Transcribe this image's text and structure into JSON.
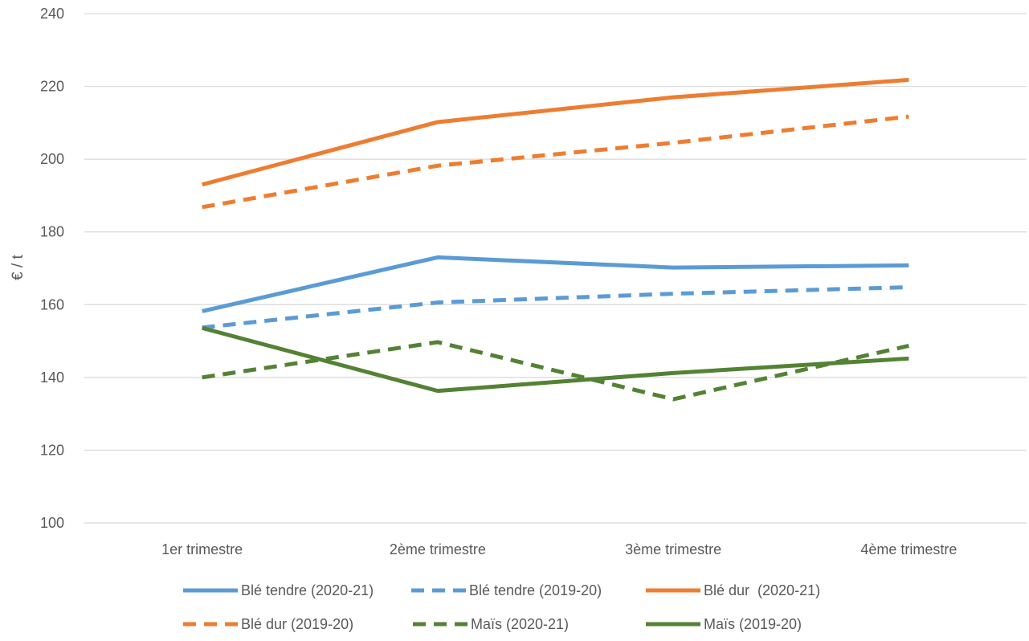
{
  "chart_data": {
    "type": "line",
    "title": "",
    "xlabel": "",
    "ylabel": "€ / t",
    "ylim": [
      100,
      240
    ],
    "yticks": [
      100,
      120,
      140,
      160,
      180,
      200,
      220,
      240
    ],
    "grid": true,
    "legend_position": "bottom",
    "categories": [
      "1er trimestre",
      "2ème trimestre",
      "3ème trimestre",
      "4ème trimestre"
    ],
    "series": [
      {
        "name": "Blé tendre (2020-21)",
        "values": [
          158.2,
          173.0,
          170.2,
          170.8
        ],
        "color": "#5B9BD5",
        "dash": "solid"
      },
      {
        "name": "Blé tendre (2019-20)",
        "values": [
          153.7,
          160.6,
          163.0,
          164.8
        ],
        "color": "#5B9BD5",
        "dash": "dashed"
      },
      {
        "name": "Blé dur  (2020-21)",
        "values": [
          193.0,
          210.2,
          217.0,
          221.8
        ],
        "color": "#ED7D31",
        "dash": "solid"
      },
      {
        "name": "Blé dur (2019-20)",
        "values": [
          186.8,
          198.2,
          204.5,
          211.7
        ],
        "color": "#ED7D31",
        "dash": "dashed"
      },
      {
        "name": "Maïs (2020-21)",
        "values": [
          140.0,
          149.7,
          134.0,
          148.7
        ],
        "color": "#548235",
        "dash": "dashed"
      },
      {
        "name": "Maïs (2019-20)",
        "values": [
          153.6,
          136.3,
          141.2,
          145.2
        ],
        "color": "#548235",
        "dash": "solid"
      }
    ]
  }
}
